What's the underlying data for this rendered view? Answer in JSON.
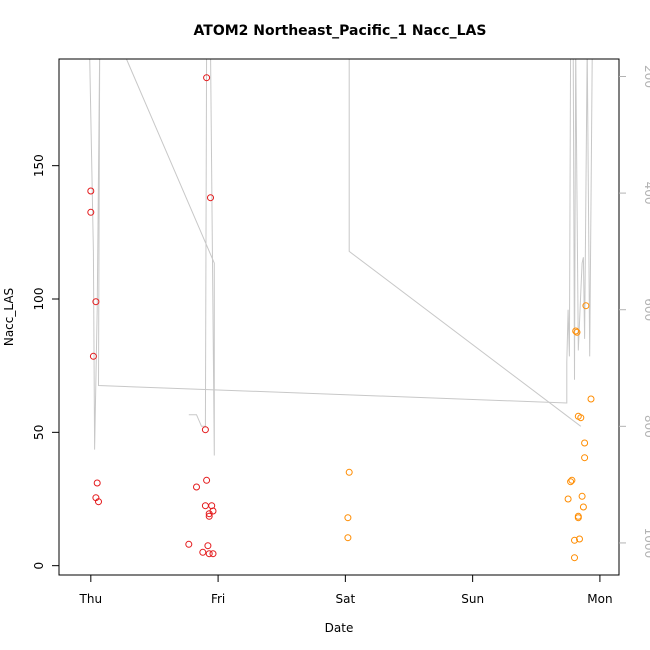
{
  "chart_data": {
    "type": "scatter",
    "title": "ATOM2 Northeast_Pacific_1 Nacc_LAS",
    "xlabel": "Date",
    "ylabel": "Nacc_LAS",
    "x_tick_labels": [
      "Thu",
      "Fri",
      "Sat",
      "Sun",
      "Mon"
    ],
    "xlim_days": [
      -0.25,
      4.15
    ],
    "ylim": [
      -3.5,
      190
    ],
    "y_ticks": [
      0,
      50,
      100,
      150
    ],
    "y_right": {
      "ticks": [
        200,
        400,
        600,
        800,
        1000
      ],
      "range": [
        1055,
        170
      ],
      "color": "#b3b3b3"
    },
    "grid": false,
    "legend": "none",
    "series": [
      {
        "color": "#e41a1c",
        "points": [
          [
            0.0,
            140.5
          ],
          [
            0.0,
            132.5
          ],
          [
            0.02,
            78.5
          ],
          [
            0.04,
            99.0
          ],
          [
            0.05,
            31.0
          ],
          [
            0.04,
            25.5
          ],
          [
            0.06,
            24.0
          ],
          [
            0.77,
            8.0
          ],
          [
            0.83,
            29.5
          ],
          [
            0.88,
            5.0
          ],
          [
            0.9,
            22.5
          ],
          [
            0.9,
            51.0
          ],
          [
            0.91,
            183.0
          ],
          [
            0.91,
            32.0
          ],
          [
            0.92,
            7.5
          ],
          [
            0.93,
            4.5
          ],
          [
            0.93,
            19.5
          ],
          [
            0.94,
            138.0
          ],
          [
            0.93,
            18.5
          ],
          [
            0.95,
            22.5
          ],
          [
            0.96,
            20.5
          ],
          [
            0.96,
            4.5
          ]
        ]
      },
      {
        "color": "#ff8c00",
        "points": [
          [
            2.02,
            10.5
          ],
          [
            2.02,
            18.0
          ],
          [
            2.03,
            35.0
          ],
          [
            3.75,
            25.0
          ],
          [
            3.77,
            31.5
          ],
          [
            3.78,
            32.0
          ],
          [
            3.8,
            3.0
          ],
          [
            3.8,
            9.5
          ],
          [
            3.81,
            88.0
          ],
          [
            3.82,
            87.5
          ],
          [
            3.83,
            18.0
          ],
          [
            3.83,
            18.5
          ],
          [
            3.83,
            56.0
          ],
          [
            3.84,
            10.0
          ],
          [
            3.85,
            55.5
          ],
          [
            3.86,
            26.0
          ],
          [
            3.87,
            22.0
          ],
          [
            3.88,
            40.5
          ],
          [
            3.88,
            46.0
          ],
          [
            3.89,
            97.5
          ],
          [
            3.93,
            62.5
          ]
        ]
      }
    ],
    "right_axis_line": {
      "color": "#c8c8c8",
      "points": [
        [
          -0.01,
          150
        ],
        [
          0.02,
          500
        ],
        [
          0.03,
          840
        ],
        [
          0.05,
          600
        ],
        [
          0.07,
          150
        ],
        [
          0.06,
          730
        ],
        [
          3.74,
          760
        ],
        [
          3.74,
          690
        ],
        [
          3.75,
          600
        ],
        [
          3.76,
          680
        ],
        [
          3.77,
          150
        ],
        [
          3.79,
          150
        ],
        [
          3.8,
          720
        ],
        [
          3.81,
          150
        ],
        [
          3.83,
          670
        ],
        [
          3.85,
          570
        ],
        [
          3.86,
          520
        ],
        [
          3.87,
          510
        ],
        [
          3.88,
          650
        ],
        [
          3.9,
          150
        ],
        [
          3.92,
          680
        ],
        [
          3.94,
          150
        ],
        [
          3.97,
          150
        ]
      ]
    },
    "right_axis_line_2": {
      "color": "#c8c8c8",
      "points": [
        [
          0.24,
          150
        ],
        [
          0.97,
          520
        ],
        [
          0.97,
          850
        ],
        [
          0.94,
          150
        ],
        [
          0.91,
          150
        ],
        [
          0.9,
          800
        ],
        [
          0.87,
          800
        ],
        [
          0.83,
          780
        ],
        [
          0.77,
          780
        ]
      ]
    },
    "right_axis_line_3": {
      "color": "#c8c8c8",
      "points": [
        [
          2.03,
          150
        ],
        [
          2.03,
          500
        ],
        [
          3.85,
          800
        ]
      ]
    }
  }
}
